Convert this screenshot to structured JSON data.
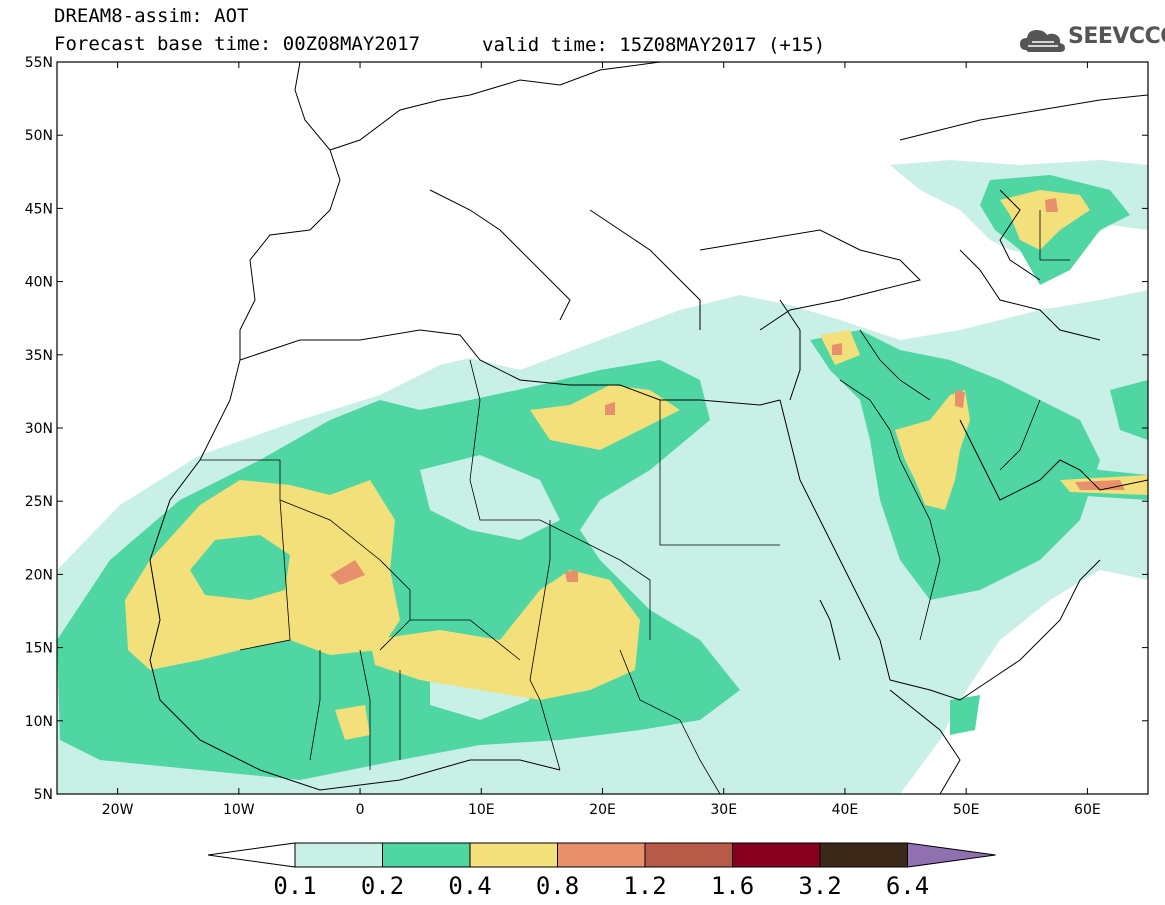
{
  "header": {
    "title_line1": "DREAM8-assim: AOT",
    "title_line2": "Forecast base time: 00Z08MAY2017",
    "valid_time": "valid time: 15Z08MAY2017 (+15)",
    "logo_text": "SEEVCCC"
  },
  "map": {
    "lat_labels": [
      "55N",
      "50N",
      "45N",
      "40N",
      "35N",
      "30N",
      "25N",
      "20N",
      "15N",
      "10N",
      "5N"
    ],
    "lon_labels": [
      "20W",
      "10W",
      "0",
      "10E",
      "20E",
      "30E",
      "40E",
      "50E",
      "60E"
    ],
    "extent": {
      "lon_min": -25,
      "lon_max": 65,
      "lat_min": 5,
      "lat_max": 55
    }
  },
  "colorbar": {
    "labels": [
      "0.1",
      "0.2",
      "0.4",
      "0.8",
      "1.2",
      "1.6",
      "3.2",
      "6.4"
    ],
    "colors": [
      "#c8f0e6",
      "#4fd6a3",
      "#f4e07a",
      "#e8906c",
      "#b85a48",
      "#880020",
      "#3c2818",
      "#9070b0"
    ]
  },
  "colors": {
    "aot_01_02": "#c8f0e6",
    "aot_02_04": "#4fd6a3",
    "aot_04_08": "#f4e07a",
    "aot_08_12": "#e8906c"
  }
}
